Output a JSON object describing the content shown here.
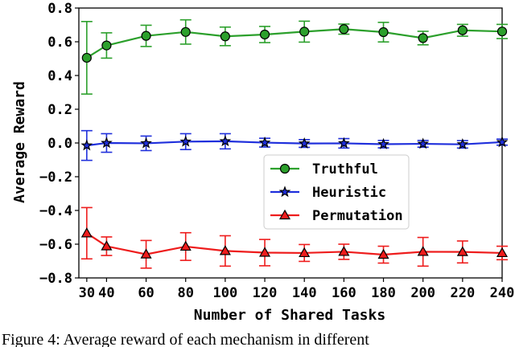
{
  "chart_data": {
    "type": "line",
    "xlabel": "Number of Shared Tasks",
    "ylabel": "Average Reward",
    "x": [
      30,
      40,
      60,
      80,
      100,
      120,
      140,
      160,
      180,
      200,
      220,
      240
    ],
    "x_tick_labels": [
      "30",
      "40",
      "60",
      "80",
      "100",
      "120",
      "140",
      "160",
      "180",
      "200",
      "220",
      "240"
    ],
    "xlim": [
      26,
      240
    ],
    "ylim": [
      -0.8,
      0.8
    ],
    "y_ticks": [
      0.8,
      0.6,
      0.4,
      0.2,
      0.0,
      -0.2,
      -0.4,
      -0.6,
      -0.8
    ],
    "y_tick_labels": [
      "0.8",
      "0.6",
      "0.4",
      "0.2",
      "0.0",
      "−0.2",
      "−0.4",
      "−0.6",
      "−0.8"
    ],
    "grid": false,
    "legend_position": "center-right",
    "series": [
      {
        "name": "Truthful",
        "color": "#2ca02c",
        "errcolor": "#2ca02c",
        "marker": "circle",
        "values": [
          0.505,
          0.578,
          0.635,
          0.658,
          0.632,
          0.643,
          0.66,
          0.675,
          0.657,
          0.622,
          0.668,
          0.661
        ],
        "errors": [
          0.215,
          0.075,
          0.063,
          0.072,
          0.055,
          0.048,
          0.062,
          0.03,
          0.058,
          0.04,
          0.035,
          0.042
        ]
      },
      {
        "name": "Heuristic",
        "color": "#1f2fdc",
        "errcolor": "#1f2fdc",
        "marker": "star",
        "values": [
          -0.015,
          0.0,
          -0.002,
          0.008,
          0.01,
          0.002,
          -0.003,
          -0.002,
          -0.007,
          -0.005,
          -0.008,
          0.005
        ],
        "errors": [
          0.088,
          0.055,
          0.043,
          0.047,
          0.045,
          0.026,
          0.023,
          0.028,
          0.022,
          0.02,
          0.022,
          0.018
        ]
      },
      {
        "name": "Permutation",
        "color": "#ee1c1c",
        "errcolor": "#ee1c1c",
        "marker": "triangle",
        "values": [
          -0.535,
          -0.612,
          -0.66,
          -0.614,
          -0.64,
          -0.65,
          -0.652,
          -0.645,
          -0.662,
          -0.645,
          -0.646,
          -0.652
        ],
        "errors": [
          0.152,
          0.055,
          0.082,
          0.082,
          0.09,
          0.078,
          0.05,
          0.045,
          0.05,
          0.085,
          0.065,
          0.04
        ]
      }
    ]
  },
  "caption": {
    "text": "Figure 4: Average reward of each mechanism in different"
  }
}
